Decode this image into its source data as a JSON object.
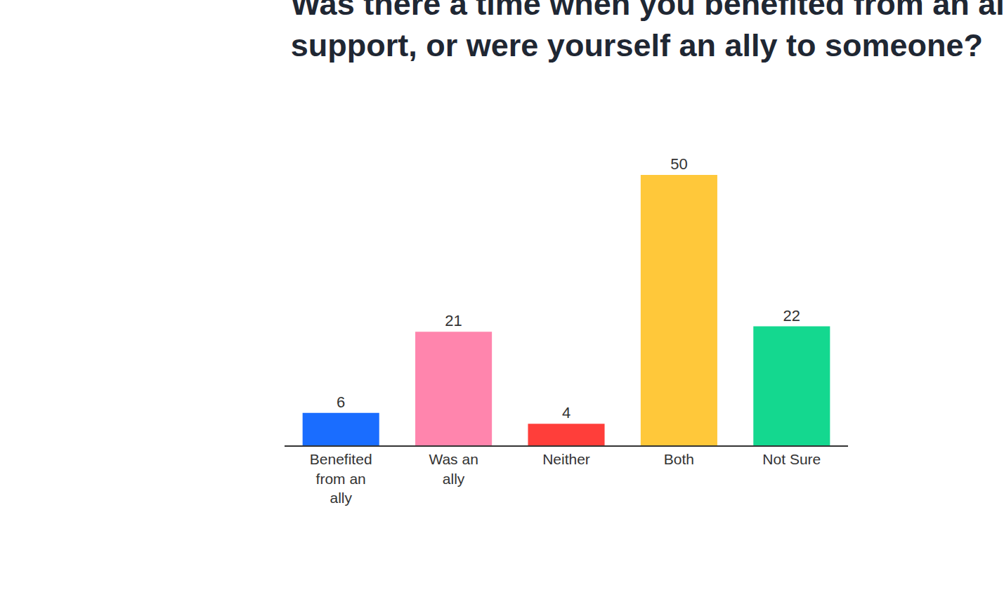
{
  "chart_data": {
    "type": "bar",
    "title": "Was there a time when you benefited from an ally’s support, or were yourself an ally to someone?",
    "categories": [
      "Benefited from an ally",
      "Was an ally",
      "Neither",
      "Both",
      "Not Sure"
    ],
    "values": [
      6,
      21,
      4,
      50,
      22
    ],
    "colors": [
      "#1a6dff",
      "#ff85ad",
      "#ff3e3a",
      "#ffc83a",
      "#14d88f"
    ],
    "ylim": [
      0,
      50
    ],
    "grid": false,
    "data_labels": true,
    "tick_labels": "x"
  }
}
